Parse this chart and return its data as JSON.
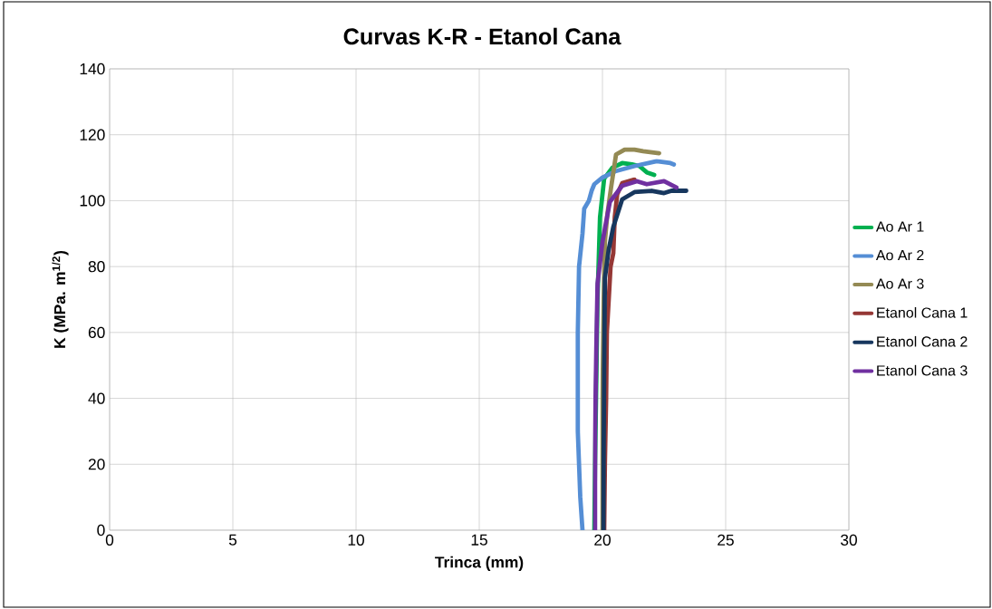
{
  "chart_data": {
    "type": "line",
    "title": "Curvas K-R - Etanol Cana",
    "xlabel": "Trinca (mm)",
    "ylabel": "K (MPa. m$^{1/2}$)",
    "xlim": [
      0,
      30
    ],
    "xticks": [
      0,
      5,
      10,
      15,
      20,
      25,
      30
    ],
    "ylim": [
      0,
      140
    ],
    "yticks": [
      0,
      20,
      40,
      60,
      80,
      100,
      120,
      140
    ],
    "grid": true,
    "legend": "right",
    "marker": "none",
    "line_style": "solid",
    "series": [
      {
        "name": "Ao Ar 1",
        "color": "#00b050",
        "x": [
          19.67,
          19.7,
          19.75,
          19.8,
          19.9,
          20.07,
          20.4,
          20.8,
          21.2,
          21.5,
          21.8,
          22.1
        ],
        "values": [
          0,
          20,
          45,
          70,
          94.9,
          106.7,
          110,
          111.4,
          111,
          110.5,
          108.6,
          107.8
        ]
      },
      {
        "name": "Ao Ar 2",
        "color": "#558ed5",
        "x": [
          19.19,
          19.1,
          19.0,
          19.0,
          19.05,
          19.19,
          19.26,
          19.45,
          19.56,
          19.67,
          20.0,
          20.55,
          21.3,
          22.2,
          22.76,
          22.9
        ],
        "values": [
          0,
          10,
          30,
          60,
          80,
          90,
          97.6,
          100,
          103,
          105,
          107,
          109,
          110.5,
          112,
          111.4,
          111
        ]
      },
      {
        "name": "Ao Ar 3",
        "color": "#948a54",
        "x": [
          20.0,
          20.0,
          20.05,
          20.1,
          20.2,
          20.35,
          20.55,
          20.9,
          21.3,
          21.65,
          22.3
        ],
        "values": [
          0,
          40,
          70,
          87.5,
          96,
          104,
          114,
          115.5,
          115.5,
          115,
          114.4
        ]
      },
      {
        "name": "Etanol Cana 1",
        "color": "#953735",
        "x": [
          20.07,
          20.1,
          20.15,
          20.18,
          20.33,
          20.44,
          20.5,
          20.6,
          20.8,
          21.3
        ],
        "values": [
          0,
          20,
          40,
          60,
          80,
          84,
          95,
          102,
          105.3,
          106.4
        ]
      },
      {
        "name": "Etanol Cana 2",
        "color": "#17375e",
        "x": [
          20.04,
          20.05,
          20.07,
          20.1,
          20.25,
          20.44,
          20.8,
          21.3,
          22.0,
          22.5,
          22.8,
          23.4
        ],
        "values": [
          0,
          25,
          50,
          76.5,
          85,
          92,
          100.4,
          102.6,
          103,
          102.3,
          103,
          103
        ]
      },
      {
        "name": "Etanol Cana 3",
        "color": "#7030a0",
        "x": [
          19.7,
          19.7,
          19.75,
          19.8,
          20.0,
          20.3,
          20.8,
          21.4,
          21.8,
          22.5,
          23.0
        ],
        "values": [
          0,
          30,
          55,
          74.8,
          87.5,
          99.6,
          104.5,
          105.9,
          105,
          105.9,
          104
        ]
      }
    ]
  }
}
